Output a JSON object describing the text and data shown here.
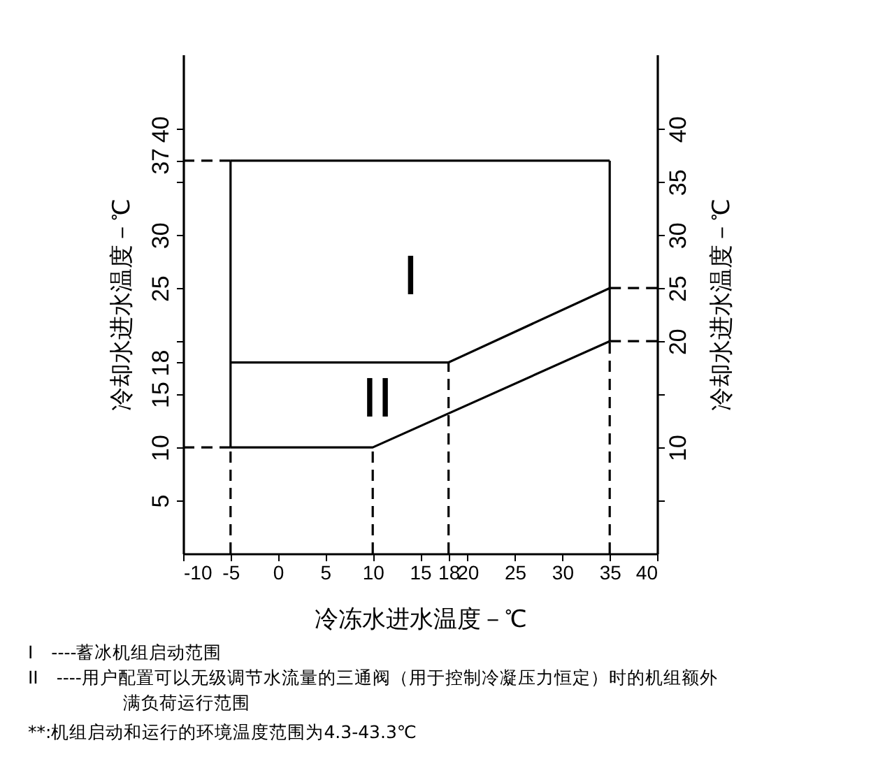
{
  "chart_data": {
    "type": "line",
    "xlabel": "冷冻水进水温度－℃",
    "ylabel": "冷却水进水温度－℃",
    "y2label": "冷却水进水温度－℃",
    "xlim": [
      -10,
      40
    ],
    "xticks": [
      -10,
      -5,
      0,
      5,
      10,
      15,
      18,
      20,
      25,
      30,
      35,
      40
    ],
    "ylim": [
      0,
      47
    ],
    "yticks": [
      5,
      10,
      15,
      18,
      {
        "value": 20,
        "label": null
      },
      25,
      30,
      {
        "value": 35,
        "label": null
      },
      37,
      40
    ],
    "y2lim": [
      0,
      47
    ],
    "y2ticks": [
      {
        "value": 5,
        "label": null
      },
      10,
      {
        "value": 15,
        "label": null
      },
      20,
      25,
      30,
      35,
      40
    ],
    "marker": "none",
    "series": [
      {
        "color": "#000000",
        "line_style": "dashed",
        "x": [
          -10,
          -5
        ],
        "values": [
          37,
          37
        ]
      },
      {
        "color": "#000000",
        "line_style": "dashed",
        "x": [
          -10,
          -5
        ],
        "values": [
          10,
          10
        ]
      },
      {
        "color": "#000000",
        "line_style": "dashed",
        "x": [
          -5,
          -5
        ],
        "values": [
          0,
          10
        ]
      },
      {
        "color": "#000000",
        "line_style": "dashed",
        "x": [
          10,
          10
        ],
        "values": [
          0,
          10
        ]
      },
      {
        "color": "#000000",
        "line_style": "dashed",
        "x": [
          18,
          18
        ],
        "values": [
          0,
          18
        ]
      },
      {
        "color": "#000000",
        "line_style": "dashed",
        "x": [
          35,
          35
        ],
        "values": [
          0,
          20
        ]
      },
      {
        "color": "#000000",
        "line_style": "dashed",
        "x": [
          35,
          40
        ],
        "values": [
          25,
          25
        ]
      },
      {
        "color": "#000000",
        "line_style": "dashed",
        "x": [
          35,
          40
        ],
        "values": [
          20,
          20
        ]
      },
      {
        "color": "#000000",
        "x": [
          -5,
          -5
        ],
        "values": [
          10,
          37
        ]
      },
      {
        "color": "#000000",
        "x": [
          -5,
          35
        ],
        "values": [
          37,
          37
        ]
      },
      {
        "color": "#000000",
        "x": [
          35,
          35
        ],
        "values": [
          20,
          37
        ]
      },
      {
        "color": "#000000",
        "x": [
          -5,
          18,
          35
        ],
        "values": [
          18,
          18,
          25
        ]
      },
      {
        "color": "#000000",
        "x": [
          -5,
          10,
          35
        ],
        "values": [
          10,
          10,
          20
        ]
      }
    ],
    "annotations": [
      "I",
      "II",
      "I　----蓄冰机组启动范围",
      "II　----用户配置可以无级调节水流量的三通阀（用于控制冷凝压力恒定）时的机组额外满负荷运行范围",
      "**:机组启动和运行的环境温度范围为4.3-43.3℃"
    ]
  }
}
